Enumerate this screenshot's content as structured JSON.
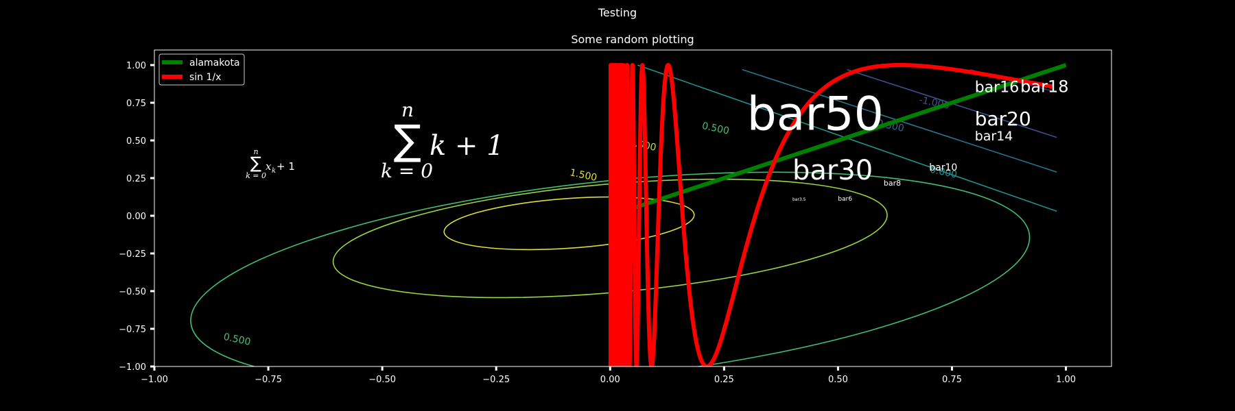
{
  "figure": {
    "suptitle": "Testing"
  },
  "chart_data": {
    "type": "line",
    "title": "Some random plotting",
    "xlabel": "",
    "ylabel": "",
    "xlim": [
      -1.0,
      1.1
    ],
    "ylim": [
      -1.0,
      1.1
    ],
    "xticks": [
      "−1.00",
      "−0.75",
      "−0.50",
      "−0.25",
      "0.00",
      "0.25",
      "0.50",
      "0.75",
      "1.00"
    ],
    "xtick_values": [
      -1.0,
      -0.75,
      -0.5,
      -0.25,
      0.0,
      0.25,
      0.5,
      0.75,
      1.0
    ],
    "yticks": [
      "−1.00",
      "−0.75",
      "−0.50",
      "−0.25",
      "0.00",
      "0.25",
      "0.50",
      "0.75",
      "1.00"
    ],
    "ytick_values": [
      -1.0,
      -0.75,
      -0.5,
      -0.25,
      0.0,
      0.25,
      0.5,
      0.75,
      1.0
    ],
    "grid": false,
    "legend_position": "top-left",
    "series": [
      {
        "name": "alamakota",
        "color": "#008000",
        "x": [
          0.0,
          1.0
        ],
        "y": [
          0.0,
          1.0
        ]
      },
      {
        "name": "sin 1/x",
        "color": "#ff0000",
        "x_range": [
          0.001,
          0.97
        ],
        "function": "sin(1/x)"
      }
    ],
    "contour_labels": [
      {
        "text": "1.500",
        "x": -0.06,
        "y": 0.25,
        "color": "#dede3a"
      },
      {
        "text": "1.000",
        "x": 0.07,
        "y": 0.45,
        "color": "#b8de44"
      },
      {
        "text": "0.500",
        "x": 0.23,
        "y": 0.56,
        "color": "#44bf70"
      },
      {
        "text": "0.500",
        "x": -0.82,
        "y": -0.84,
        "color": "#44bf70"
      },
      {
        "text": "0.000",
        "x": 0.73,
        "y": 0.27,
        "color": "#21918c"
      },
      {
        "text": "-0.500",
        "x": 0.61,
        "y": 0.58,
        "color": "#31688e"
      },
      {
        "text": "-1.000",
        "x": 0.71,
        "y": 0.73,
        "color": "#3b528b"
      }
    ],
    "annotations": [
      {
        "text": "bar50",
        "x": 0.3,
        "y": 0.57,
        "size": 68
      },
      {
        "text": "bar30",
        "x": 0.4,
        "y": 0.24,
        "size": 40
      },
      {
        "text": "bar20",
        "x": 0.8,
        "y": 0.6,
        "size": 28
      },
      {
        "text": "bar18",
        "x": 0.9,
        "y": 0.82,
        "size": 24
      },
      {
        "text": "bar16",
        "x": 0.8,
        "y": 0.82,
        "size": 22
      },
      {
        "text": "bar14",
        "x": 0.8,
        "y": 0.5,
        "size": 19
      },
      {
        "text": "bar10",
        "x": 0.7,
        "y": 0.3,
        "size": 14
      },
      {
        "text": "bar8",
        "x": 0.6,
        "y": 0.2,
        "size": 11
      },
      {
        "text": "bar6",
        "x": 0.5,
        "y": 0.1,
        "size": 9
      },
      {
        "text": "bar3.5",
        "x": 0.4,
        "y": 0.1,
        "size": 6
      }
    ],
    "math_annotations": [
      {
        "id": "big",
        "sum_top": "n",
        "sum_bottom": "k = 0",
        "body": "k + 1"
      },
      {
        "id": "small",
        "sum_top": "n",
        "sum_bottom": "k = 0",
        "body": "x",
        "sub": "k",
        "tail": " + 1"
      }
    ]
  }
}
